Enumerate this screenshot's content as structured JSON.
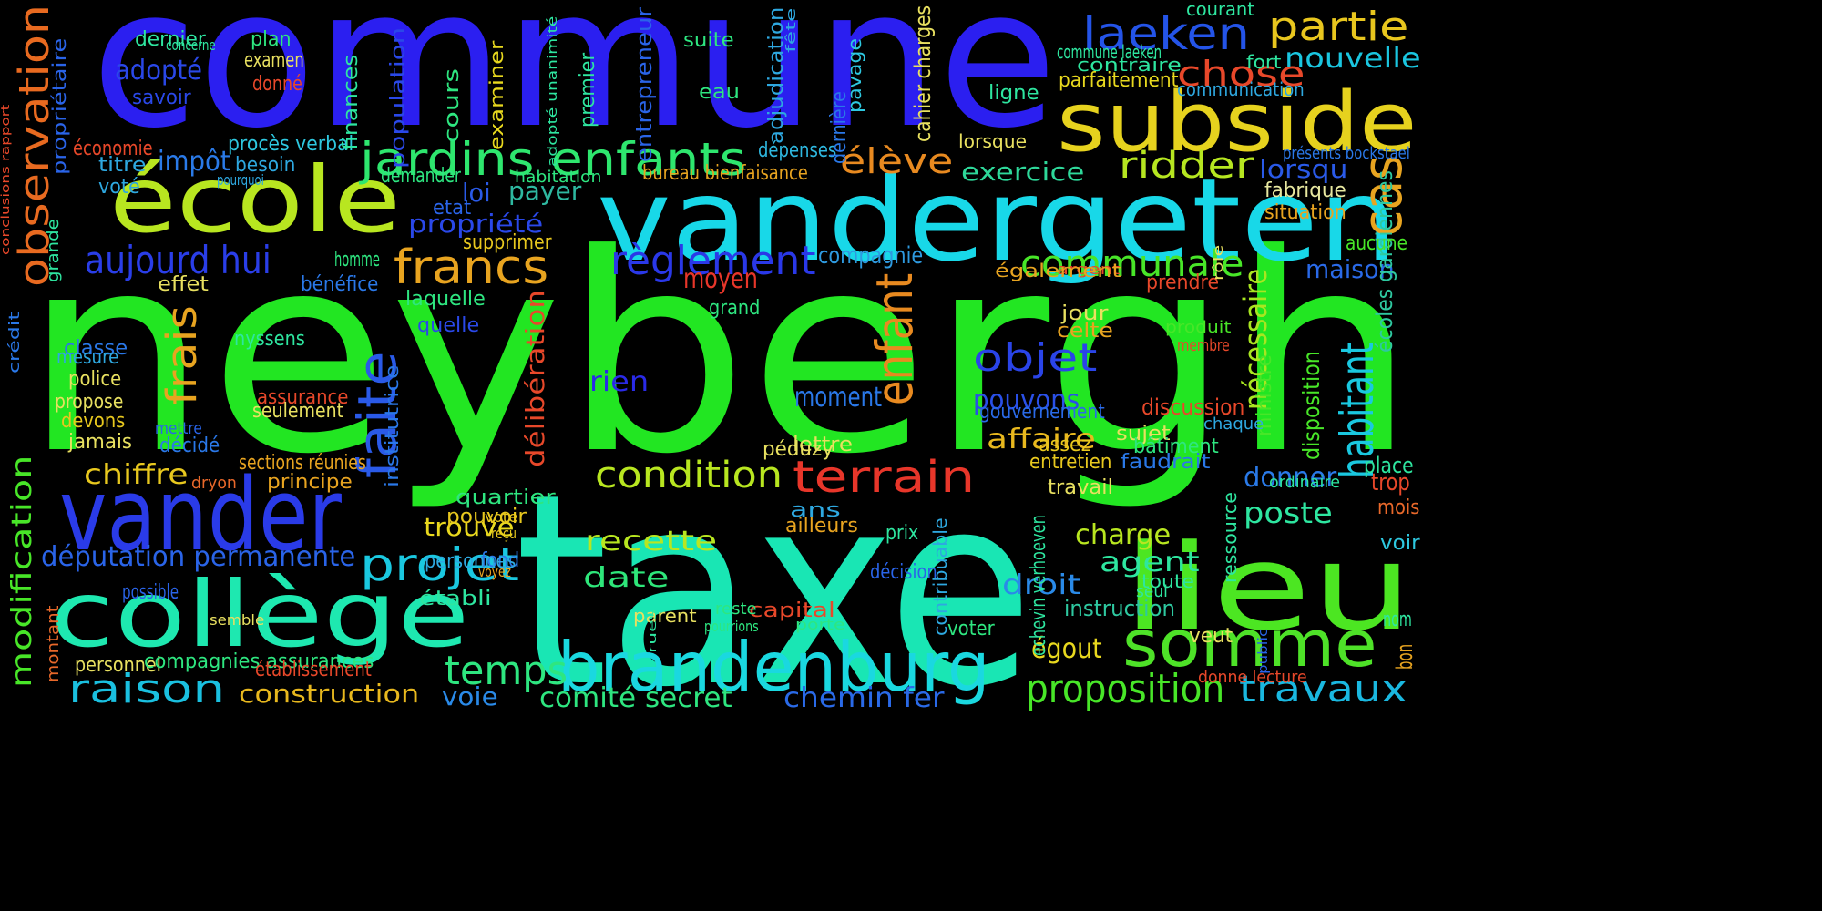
{
  "background": "#000000",
  "words": [
    {
      "text": "neybergh",
      "color": "#22e622"
    },
    {
      "text": "commune",
      "color": "#2b1ff0"
    },
    {
      "text": "taxe",
      "color": "#19e6b4"
    },
    {
      "text": "vandergeten",
      "color": "#18d8e8"
    },
    {
      "text": "école",
      "color": "#b8e620"
    },
    {
      "text": "subside",
      "color": "#e6d21e"
    },
    {
      "text": "lieu",
      "color": "#4ce622"
    },
    {
      "text": "vander",
      "color": "#2a3be8"
    },
    {
      "text": "collège",
      "color": "#1ee8b0"
    },
    {
      "text": "somme",
      "color": "#4ee228"
    },
    {
      "text": "brandenburg",
      "color": "#1ad8e0"
    },
    {
      "text": "jardins enfants",
      "color": "#2ee66e"
    },
    {
      "text": "laeken",
      "color": "#2454e8"
    },
    {
      "text": "partie",
      "color": "#e8c61e"
    },
    {
      "text": "chose",
      "color": "#e8482a"
    },
    {
      "text": "nouvelle",
      "color": "#1ac6e0"
    },
    {
      "text": "francs",
      "color": "#e8a420"
    },
    {
      "text": "aujourd hui",
      "color": "#2a3ee8"
    },
    {
      "text": "règlement",
      "color": "#2a38e8"
    },
    {
      "text": "communale",
      "color": "#48e628"
    },
    {
      "text": "ridder",
      "color": "#b6e620"
    },
    {
      "text": "élève",
      "color": "#e88a20"
    },
    {
      "text": "exercice",
      "color": "#2ed89a"
    },
    {
      "text": "cas",
      "color": "#e8a420"
    },
    {
      "text": "lorsqu",
      "color": "#2a5ae8"
    },
    {
      "text": "enfant",
      "color": "#e88a20"
    },
    {
      "text": "objet",
      "color": "#2a44e8"
    },
    {
      "text": "faite",
      "color": "#2a5ae8"
    },
    {
      "text": "frais",
      "color": "#e8a420"
    },
    {
      "text": "terrain",
      "color": "#e8362a"
    },
    {
      "text": "condition",
      "color": "#b8e620"
    },
    {
      "text": "habitant",
      "color": "#1ac8e0"
    },
    {
      "text": "nécessaire",
      "color": "#a8e620"
    },
    {
      "text": "projet",
      "color": "#1ac8e0"
    },
    {
      "text": "observation",
      "color": "#e86a20"
    },
    {
      "text": "modification",
      "color": "#48e628"
    },
    {
      "text": "députation permanente",
      "color": "#2a64e8"
    },
    {
      "text": "raison",
      "color": "#1ac0e0"
    },
    {
      "text": "temps",
      "color": "#2ee680"
    },
    {
      "text": "proposition",
      "color": "#48e628"
    },
    {
      "text": "travaux",
      "color": "#1ab8e0"
    },
    {
      "text": "recette",
      "color": "#b8e620"
    },
    {
      "text": "date",
      "color": "#2ee67a"
    },
    {
      "text": "chiffre",
      "color": "#e8c81e"
    },
    {
      "text": "charge",
      "color": "#b8e620"
    },
    {
      "text": "poste",
      "color": "#2ee6a0"
    },
    {
      "text": "donner",
      "color": "#2a7ae8"
    },
    {
      "text": "agent",
      "color": "#2ee6a0"
    },
    {
      "text": "droit",
      "color": "#2a8ae8"
    },
    {
      "text": "affaire",
      "color": "#e8b81e"
    },
    {
      "text": "pouvons",
      "color": "#2a50e8"
    },
    {
      "text": "moment",
      "color": "#2a78e8"
    },
    {
      "text": "compagnie",
      "color": "#2e9ae0"
    },
    {
      "text": "moyen",
      "color": "#e8362a"
    },
    {
      "text": "maison",
      "color": "#2a6ae8"
    },
    {
      "text": "payer",
      "color": "#2eb8a0"
    },
    {
      "text": "loi",
      "color": "#2a5ae8"
    },
    {
      "text": "propriété",
      "color": "#2a48e8"
    },
    {
      "text": "impôt",
      "color": "#2a7ae8"
    },
    {
      "text": "adopté",
      "color": "#2a48e8"
    },
    {
      "text": "rien",
      "color": "#2a2ae8"
    },
    {
      "text": "égout",
      "color": "#e8d81e"
    },
    {
      "text": "comité secret",
      "color": "#2ee680"
    },
    {
      "text": "chemin fer",
      "color": "#2a6ae8"
    },
    {
      "text": "voie",
      "color": "#2a8ae8"
    },
    {
      "text": "construction",
      "color": "#e8b81e"
    },
    {
      "text": "trouve",
      "color": "#e8d81e"
    },
    {
      "text": "délibération",
      "color": "#e8482a"
    },
    {
      "text": "instruction",
      "color": "#2ec8a0"
    },
    {
      "text": "ressource",
      "color": "#2ee6a0"
    },
    {
      "text": "écoles gardiennes",
      "color": "#2ec8a0"
    },
    {
      "text": "disposition",
      "color": "#48e628"
    },
    {
      "text": "ministre",
      "color": "#48e628"
    },
    {
      "text": "discussion",
      "color": "#e8482a"
    },
    {
      "text": "gouvernement",
      "color": "#2a6ae8"
    },
    {
      "text": "fabrique",
      "color": "#e8e8a0"
    },
    {
      "text": "situation",
      "color": "#e8a420"
    },
    {
      "text": "aucune",
      "color": "#48e628"
    },
    {
      "text": "place",
      "color": "#2ee6a0"
    },
    {
      "text": "trop",
      "color": "#e8482a"
    },
    {
      "text": "mois",
      "color": "#e8682a"
    },
    {
      "text": "voir",
      "color": "#2ec8e0"
    },
    {
      "text": "nom",
      "color": "#2ee6a0"
    },
    {
      "text": "bon",
      "color": "#e8a420"
    },
    {
      "text": "procès verbal",
      "color": "#2ec8e0"
    },
    {
      "text": "dépenses",
      "color": "#2eb8e0"
    },
    {
      "text": "bureau bienfaisance",
      "color": "#e8a420"
    },
    {
      "text": "cahier charges",
      "color": "#e8e060"
    },
    {
      "text": "commune laeken",
      "color": "#2ee6a0"
    },
    {
      "text": "contraire",
      "color": "#2ee6a0"
    },
    {
      "text": "parfaitement",
      "color": "#e8d81e"
    },
    {
      "text": "communication",
      "color": "#2ea8e0"
    },
    {
      "text": "présents bockstael",
      "color": "#2a78e8"
    },
    {
      "text": "courant",
      "color": "#2ee6a0"
    },
    {
      "text": "fort",
      "color": "#2ee6a0"
    },
    {
      "text": "ligne",
      "color": "#2ee6a0"
    },
    {
      "text": "lorsque",
      "color": "#e8e060"
    },
    {
      "text": "suite",
      "color": "#2ee680"
    },
    {
      "text": "eau",
      "color": "#2ee680"
    },
    {
      "text": "adjudication",
      "color": "#2ea8e0"
    },
    {
      "text": "fête",
      "color": "#2ea8e0"
    },
    {
      "text": "dernière",
      "color": "#2a78e8"
    },
    {
      "text": "pavage",
      "color": "#2ec8e0"
    },
    {
      "text": "entrepreneur",
      "color": "#2a64e8"
    },
    {
      "text": "premier",
      "color": "#2ee6a0"
    },
    {
      "text": "adopté unanimité",
      "color": "#2ee6a0"
    },
    {
      "text": "examiner",
      "color": "#e8d81e"
    },
    {
      "text": "cours",
      "color": "#2ee680"
    },
    {
      "text": "population",
      "color": "#2a48e8"
    },
    {
      "text": "finances",
      "color": "#2ee6a0"
    },
    {
      "text": "plan",
      "color": "#2ee680"
    },
    {
      "text": "examen",
      "color": "#e8e060"
    },
    {
      "text": "donné",
      "color": "#e8482a"
    },
    {
      "text": "dernier",
      "color": "#2ee6a0"
    },
    {
      "text": "concerne",
      "color": "#2ee6a0"
    },
    {
      "text": "savoir",
      "color": "#2a48e8"
    },
    {
      "text": "économie",
      "color": "#e8482a"
    },
    {
      "text": "titre",
      "color": "#2ea8e0"
    },
    {
      "text": "besoin",
      "color": "#2ea8e0"
    },
    {
      "text": "pourquoi",
      "color": "#2ea8e0"
    },
    {
      "text": "voté",
      "color": "#2ea8e0"
    },
    {
      "text": "demander",
      "color": "#2ee680"
    },
    {
      "text": "habitation",
      "color": "#2ee680"
    },
    {
      "text": "etat",
      "color": "#2a64e8"
    },
    {
      "text": "propriétaire",
      "color": "#2a64e8"
    },
    {
      "text": "conclusions rapport",
      "color": "#e8482a"
    },
    {
      "text": "grande",
      "color": "#2ee6a0"
    },
    {
      "text": "crédit",
      "color": "#2a78e8"
    },
    {
      "text": "supprimer",
      "color": "#e8c81e"
    },
    {
      "text": "effet",
      "color": "#e8e060"
    },
    {
      "text": "bénéfice",
      "color": "#2a78e8"
    },
    {
      "text": "homme",
      "color": "#2ee680"
    },
    {
      "text": "laquelle",
      "color": "#2ee680"
    },
    {
      "text": "quelle",
      "color": "#2a48e8"
    },
    {
      "text": "grand",
      "color": "#2ee680"
    },
    {
      "text": "nyssens",
      "color": "#2ee6a0"
    },
    {
      "text": "classe",
      "color": "#2a78e8"
    },
    {
      "text": "mesure",
      "color": "#2ea8e0"
    },
    {
      "text": "police",
      "color": "#e8e060"
    },
    {
      "text": "propose",
      "color": "#e8e060"
    },
    {
      "text": "devons",
      "color": "#e8c81e"
    },
    {
      "text": "jamais",
      "color": "#e8e060"
    },
    {
      "text": "mettre",
      "color": "#2a64e8"
    },
    {
      "text": "décidé",
      "color": "#2a78e8"
    },
    {
      "text": "assurance",
      "color": "#e8482a"
    },
    {
      "text": "seulement",
      "color": "#e8e060"
    },
    {
      "text": "institutrice",
      "color": "#2a78e8"
    },
    {
      "text": "vote",
      "color": "#e8c81e"
    },
    {
      "text": "reçu",
      "color": "#e8c81e"
    },
    {
      "text": "voyez",
      "color": "#e8a420"
    },
    {
      "text": "fond",
      "color": "#2a78e8"
    },
    {
      "text": "sections réunies",
      "color": "#e8a420"
    },
    {
      "text": "principe",
      "color": "#e8a420"
    },
    {
      "text": "dryon",
      "color": "#e8682a"
    },
    {
      "text": "quartier",
      "color": "#2ee680"
    },
    {
      "text": "pouvoir",
      "color": "#e8c81e"
    },
    {
      "text": "personnes",
      "color": "#2ea8e0"
    },
    {
      "text": "possible",
      "color": "#2a64e8"
    },
    {
      "text": "établi",
      "color": "#2ee6a0"
    },
    {
      "text": "semble",
      "color": "#e8e060"
    },
    {
      "text": "montant",
      "color": "#e8682a"
    },
    {
      "text": "personnel",
      "color": "#e8e060"
    },
    {
      "text": "compagnies assurances",
      "color": "#2ee680"
    },
    {
      "text": "établissement",
      "color": "#e8482a"
    },
    {
      "text": "parent",
      "color": "#e8e060"
    },
    {
      "text": "capital",
      "color": "#e8482a"
    },
    {
      "text": "porte",
      "color": "#2ee680"
    },
    {
      "text": "rues",
      "color": "#2ee6a0"
    },
    {
      "text": "pourrions",
      "color": "#2ee680"
    },
    {
      "text": "reste",
      "color": "#2ee680"
    },
    {
      "text": "péduzy",
      "color": "#e8e060"
    },
    {
      "text": "prix",
      "color": "#2ee6a0"
    },
    {
      "text": "ans",
      "color": "#2ea8e0"
    },
    {
      "text": "lettre",
      "color": "#e8e060"
    },
    {
      "text": "ailleurs",
      "color": "#e8a420"
    },
    {
      "text": "décision",
      "color": "#2a64e8"
    },
    {
      "text": "echevin verhoeven",
      "color": "#2ee6a0"
    },
    {
      "text": "contribuable",
      "color": "#2ea8e0"
    },
    {
      "text": "voter",
      "color": "#2ee680"
    },
    {
      "text": "argent",
      "color": "#e8482a"
    },
    {
      "text": "également",
      "color": "#e8a420"
    },
    {
      "text": "prendre",
      "color": "#e8482a"
    },
    {
      "text": "jour",
      "color": "#e8e060"
    },
    {
      "text": "celte",
      "color": "#e8a420"
    },
    {
      "text": "sujet",
      "color": "#e8e060"
    },
    {
      "text": "assez",
      "color": "#e8c81e"
    },
    {
      "text": "entretien",
      "color": "#e8c81e"
    },
    {
      "text": "travail",
      "color": "#e8e060"
    },
    {
      "text": "rôle",
      "color": "#e8e060"
    },
    {
      "text": "produit",
      "color": "#48e628"
    },
    {
      "text": "membre",
      "color": "#e8482a"
    },
    {
      "text": "chaque",
      "color": "#2ea8e0"
    },
    {
      "text": "bâtiment",
      "color": "#2ee680"
    },
    {
      "text": "faudrait",
      "color": "#2a78e8"
    },
    {
      "text": "ordinaire",
      "color": "#2ee6a0"
    },
    {
      "text": "public",
      "color": "#2a64e8"
    },
    {
      "text": "seul",
      "color": "#2ee6a0"
    },
    {
      "text": "toute",
      "color": "#2ee6a0"
    },
    {
      "text": "veut",
      "color": "#e8e060"
    },
    {
      "text": "donne lecture",
      "color": "#e8482a"
    }
  ]
}
